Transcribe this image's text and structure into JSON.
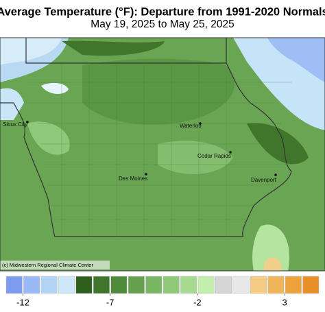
{
  "header": {
    "title": "Average Temperature (°F): Departure from 1991-2020 Normals",
    "subtitle": "May 19, 2025 to May 25, 2025"
  },
  "map": {
    "cities": [
      "Sioux City",
      "Waterloo",
      "Cedar Rapids",
      "Des Moines",
      "Davenport"
    ],
    "credit": "(c) Midwestern Regional Climate Center"
  },
  "legend": {
    "range": [
      -13,
      5
    ],
    "colors": [
      "#7d9cf0",
      "#99b8f6",
      "#b4d4f7",
      "#cde8f9",
      "#2f5f1f",
      "#3f762b",
      "#4f8a3a",
      "#65a04e",
      "#7ab563",
      "#8fc879",
      "#a6da90",
      "#c2eeae",
      "#d6d6d6",
      "#e8e8e8",
      "#f4cb82",
      "#f0b55a",
      "#eda23c",
      "#e88f27"
    ],
    "ticks": [
      -12,
      -7,
      -2,
      3
    ]
  }
}
